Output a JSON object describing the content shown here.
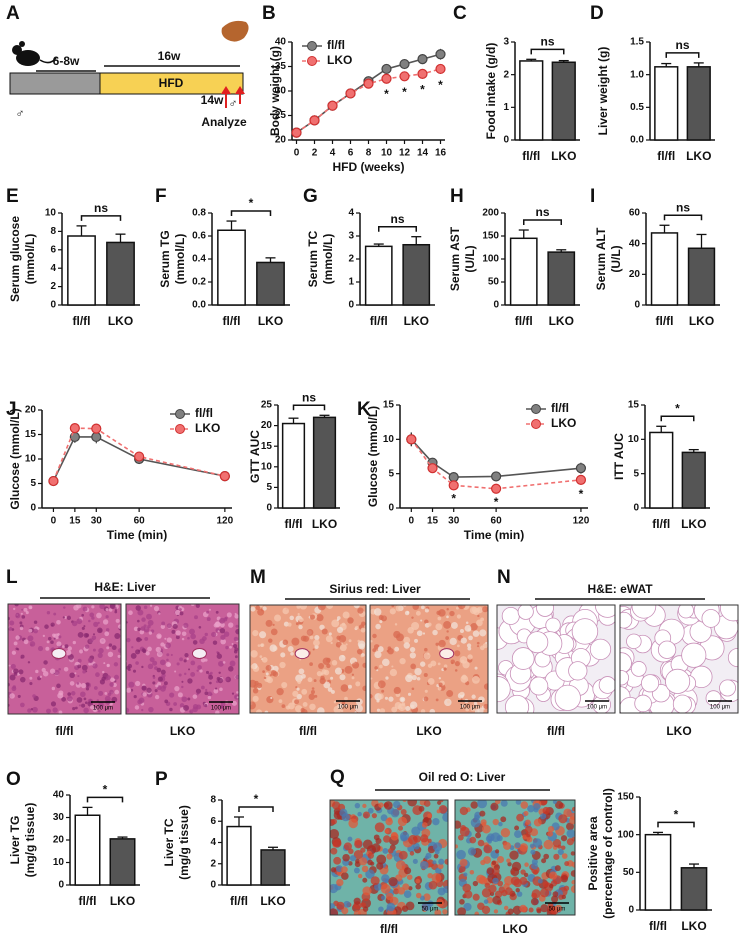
{
  "chart_data": [
    {
      "panel": "B",
      "type": "line",
      "ylabel": [
        "Body weight (g)"
      ],
      "xlabel": "HFD (weeks)",
      "x": [
        0,
        2,
        4,
        6,
        8,
        10,
        12,
        14,
        16
      ],
      "xlim": [
        -0.5,
        16.5
      ],
      "xticks": [
        0,
        2,
        4,
        6,
        8,
        10,
        12,
        14,
        16
      ],
      "ylim": [
        20,
        40
      ],
      "yticks": [
        20,
        25,
        30,
        35,
        40
      ],
      "legend": "upper left",
      "series": [
        {
          "name": "fl/fl",
          "color": "#808080",
          "dashed": false,
          "values": [
            21.5,
            24,
            27,
            29.5,
            32,
            34.5,
            35.5,
            36.5,
            37.5
          ],
          "errors": [
            0.3,
            0.4,
            0.5,
            0.5,
            0.6,
            0.8,
            0.9,
            1.0,
            1.1
          ]
        },
        {
          "name": "LKO",
          "color": "#f07070",
          "dashed": true,
          "values": [
            21.5,
            24,
            27,
            29.5,
            31.5,
            32.5,
            33,
            33.5,
            34.5
          ],
          "errors": [
            0.3,
            0.4,
            0.5,
            0.5,
            0.6,
            0.8,
            0.9,
            0.9,
            1.0
          ]
        }
      ],
      "annotations": [
        {
          "x": 10,
          "text": "*"
        },
        {
          "x": 12,
          "text": "*"
        },
        {
          "x": 14,
          "text": "*"
        },
        {
          "x": 16,
          "text": "*"
        }
      ]
    },
    {
      "panel": "C",
      "type": "bar",
      "ylabel": [
        "Food intake (g/d)"
      ],
      "categories": [
        "fl/fl",
        "LKO"
      ],
      "values": [
        2.42,
        2.38
      ],
      "errors": [
        0.05,
        0.05
      ],
      "colors": [
        "#ffffff",
        "#555555"
      ],
      "ylim": [
        0,
        3
      ],
      "yticks": [
        0,
        1,
        2,
        3
      ],
      "significance": "ns"
    },
    {
      "panel": "D",
      "type": "bar",
      "ylabel": [
        "Liver weight (g)"
      ],
      "categories": [
        "fl/fl",
        "LKO"
      ],
      "values": [
        1.12,
        1.12
      ],
      "errors": [
        0.05,
        0.06
      ],
      "colors": [
        "#ffffff",
        "#555555"
      ],
      "ylim": [
        0,
        1.5
      ],
      "yticks": [
        {
          "value": 0,
          "label": "0.0"
        },
        {
          "value": 0.5,
          "label": "0.5"
        },
        {
          "value": 1,
          "label": "1.0"
        },
        {
          "value": 1.5,
          "label": "1.5"
        }
      ],
      "significance": "ns"
    },
    {
      "panel": "E",
      "type": "bar",
      "ylabel": [
        "Serum glucose",
        "(mmol/L)"
      ],
      "categories": [
        "fl/fl",
        "LKO"
      ],
      "values": [
        7.5,
        6.8
      ],
      "errors": [
        1.1,
        0.9
      ],
      "colors": [
        "#ffffff",
        "#555555"
      ],
      "ylim": [
        0,
        10
      ],
      "yticks": [
        0,
        2,
        4,
        6,
        8,
        10
      ],
      "significance": "ns"
    },
    {
      "panel": "F",
      "type": "bar",
      "ylabel": [
        "Serum TG",
        "(mmol/L)"
      ],
      "categories": [
        "fl/fl",
        "LKO"
      ],
      "values": [
        0.65,
        0.37
      ],
      "errors": [
        0.08,
        0.04
      ],
      "colors": [
        "#ffffff",
        "#555555"
      ],
      "ylim": [
        0,
        0.8
      ],
      "yticks": [
        {
          "value": 0,
          "label": "0.0"
        },
        {
          "value": 0.2,
          "label": "0.2"
        },
        {
          "value": 0.4,
          "label": "0.4"
        },
        {
          "value": 0.6,
          "label": "0.6"
        },
        {
          "value": 0.8,
          "label": "0.8"
        }
      ],
      "significance": "*"
    },
    {
      "panel": "G",
      "type": "bar",
      "ylabel": [
        "Serum TC",
        "(mmol/L)"
      ],
      "categories": [
        "fl/fl",
        "LKO"
      ],
      "values": [
        2.55,
        2.62
      ],
      "errors": [
        0.1,
        0.35
      ],
      "colors": [
        "#ffffff",
        "#555555"
      ],
      "ylim": [
        0,
        4
      ],
      "yticks": [
        0,
        1,
        2,
        3,
        4
      ],
      "significance": "ns"
    },
    {
      "panel": "H",
      "type": "bar",
      "ylabel": [
        "Serum AST",
        "(U/L)"
      ],
      "categories": [
        "fl/fl",
        "LKO"
      ],
      "values": [
        145,
        115
      ],
      "errors": [
        18,
        5
      ],
      "colors": [
        "#ffffff",
        "#555555"
      ],
      "ylim": [
        0,
        200
      ],
      "yticks": [
        0,
        50,
        100,
        150,
        200
      ],
      "significance": "ns"
    },
    {
      "panel": "I",
      "type": "bar",
      "ylabel": [
        "Serum ALT",
        "(U/L)"
      ],
      "categories": [
        "fl/fl",
        "LKO"
      ],
      "values": [
        47,
        37
      ],
      "errors": [
        5,
        9
      ],
      "colors": [
        "#ffffff",
        "#555555"
      ],
      "ylim": [
        0,
        60
      ],
      "yticks": [
        0,
        20,
        40,
        60
      ],
      "significance": "ns"
    },
    {
      "panel": "J",
      "type": "line",
      "ylabel": [
        "Glucose (mmol/L)"
      ],
      "xlabel": "Time (min)",
      "x": [
        0,
        15,
        30,
        60,
        120
      ],
      "xlim": [
        -8,
        125
      ],
      "xticks": [
        0,
        15,
        30,
        60,
        120
      ],
      "ylim": [
        0,
        20
      ],
      "yticks": [
        0,
        5,
        10,
        15,
        20
      ],
      "legend": "upper right",
      "series": [
        {
          "name": "fl/fl",
          "color": "#808080",
          "dashed": false,
          "values": [
            5.5,
            14.5,
            14.5,
            10,
            6.5
          ],
          "errors": [
            0.4,
            1.2,
            1.3,
            0.6,
            0.4
          ]
        },
        {
          "name": "LKO",
          "color": "#f07070",
          "dashed": true,
          "values": [
            5.5,
            16.3,
            16.2,
            10.5,
            6.5
          ],
          "errors": [
            0.4,
            0.8,
            0.8,
            0.5,
            0.3
          ]
        }
      ],
      "annotations": []
    },
    {
      "type": "bar",
      "ylabel": [
        "GTT AUC"
      ],
      "categories": [
        "fl/fl",
        "LKO"
      ],
      "values": [
        20.5,
        22
      ],
      "errors": [
        1.3,
        0.5
      ],
      "colors": [
        "#ffffff",
        "#555555"
      ],
      "ylim": [
        0,
        25
      ],
      "yticks": [
        0,
        5,
        10,
        15,
        20,
        25
      ],
      "significance": "ns"
    },
    {
      "panel": "K",
      "type": "line",
      "ylabel": [
        "Glucose (mmol/L)"
      ],
      "xlabel": "Time (min)",
      "x": [
        0,
        15,
        30,
        60,
        120
      ],
      "xlim": [
        -8,
        125
      ],
      "xticks": [
        0,
        15,
        30,
        60,
        120
      ],
      "ylim": [
        0,
        15
      ],
      "yticks": [
        0,
        5,
        10,
        15
      ],
      "legend": "upper right",
      "series": [
        {
          "name": "fl/fl",
          "color": "#808080",
          "dashed": false,
          "values": [
            10,
            6.6,
            4.5,
            4.6,
            5.8
          ],
          "errors": [
            1,
            0.5,
            0.3,
            0.3,
            0.8
          ]
        },
        {
          "name": "LKO",
          "color": "#f07070",
          "dashed": true,
          "values": [
            10,
            5.8,
            3.3,
            2.8,
            4.1
          ],
          "errors": [
            1,
            0.5,
            0.3,
            0.3,
            0.4
          ]
        }
      ],
      "annotations": [
        {
          "x": 30,
          "text": "*"
        },
        {
          "x": 60,
          "text": "*"
        },
        {
          "x": 120,
          "text": "*"
        }
      ]
    },
    {
      "type": "bar",
      "ylabel": [
        "ITT AUC"
      ],
      "categories": [
        "fl/fl",
        "LKO"
      ],
      "values": [
        11,
        8.1
      ],
      "errors": [
        0.9,
        0.4
      ],
      "colors": [
        "#ffffff",
        "#555555"
      ],
      "ylim": [
        0,
        15
      ],
      "yticks": [
        0,
        5,
        10,
        15
      ],
      "significance": "*"
    },
    {
      "panel": "O",
      "type": "bar",
      "ylabel": [
        "Liver TG",
        "(mg/g tissue)"
      ],
      "categories": [
        "fl/fl",
        "LKO"
      ],
      "values": [
        31,
        20.5
      ],
      "errors": [
        3.5,
        0.8
      ],
      "colors": [
        "#ffffff",
        "#555555"
      ],
      "ylim": [
        0,
        40
      ],
      "yticks": [
        0,
        10,
        20,
        30,
        40
      ],
      "significance": "*"
    },
    {
      "panel": "P",
      "type": "bar",
      "ylabel": [
        "Liver TC",
        "(mg/g tissue)"
      ],
      "categories": [
        "fl/fl",
        "LKO"
      ],
      "values": [
        5.5,
        3.3
      ],
      "errors": [
        0.9,
        0.25
      ],
      "colors": [
        "#ffffff",
        "#555555"
      ],
      "ylim": [
        0,
        8
      ],
      "yticks": [
        0,
        2,
        4,
        6,
        8
      ],
      "significance": "*"
    },
    {
      "type": "bar",
      "ylabel": [
        "Positive area",
        "(percentage of control)"
      ],
      "categories": [
        "fl/fl",
        "LKO"
      ],
      "values": [
        100,
        56
      ],
      "errors": [
        3,
        5
      ],
      "colors": [
        "#ffffff",
        "#555555"
      ],
      "ylim": [
        0,
        150
      ],
      "yticks": [
        0,
        50,
        100,
        150
      ],
      "significance": "*"
    }
  ],
  "schematic": {
    "panel": "A",
    "phases": [
      "6-8w",
      "16w"
    ],
    "diet": "HFD",
    "timepoint": "14w",
    "endpoint": "Analyze",
    "sex": "♂"
  },
  "micrographs": [
    {
      "panel": "L",
      "title": "H&E: Liver",
      "images": [
        "fl/fl",
        "LKO"
      ],
      "scale_bar": "100 μm"
    },
    {
      "panel": "M",
      "title": "Sirius red: Liver",
      "images": [
        "fl/fl",
        "LKO"
      ],
      "scale_bar": "100 μm"
    },
    {
      "panel": "N",
      "title": "H&E: eWAT",
      "images": [
        "fl/fl",
        "LKO"
      ],
      "scale_bar": "100 μm"
    },
    {
      "panel": "Q",
      "title": "Oil red O: Liver",
      "images": [
        "fl/fl",
        "LKO"
      ],
      "scale_bar": "50 μm"
    }
  ]
}
